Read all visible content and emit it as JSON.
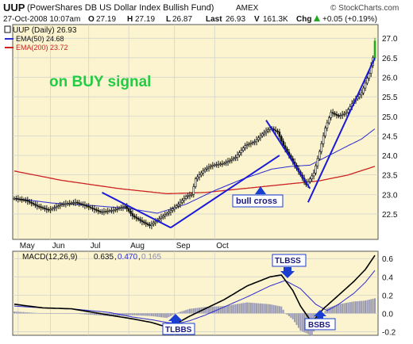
{
  "colors": {
    "panel_bg": "#fbf4cf",
    "grid": "#cfcfcf",
    "price": "#111111",
    "ema50": "#2b2bd0",
    "ema200": "#cc2222",
    "trendline": "#1a1ad8",
    "annotation_text_green": "#22cc44",
    "callout_fill": "#1a3fd0",
    "callout_box_border": "#1a3fd0",
    "macd_line": "#000000",
    "signal_line": "#2b2bd0",
    "histogram": "#9a9ab4",
    "last_bar": "#22aa22"
  },
  "header": {
    "symbol": "UUP",
    "fund_name": "(PowerShares DB US Dollar Index Bullish Fund)",
    "exchange": "AMEX",
    "watermark": "© StockCharts.com",
    "date_time": "27-Oct-2008 10:07am",
    "open_label": "O",
    "open_value": "27.19",
    "high_label": "H",
    "high_value": "27.19",
    "low_label": "L",
    "low_value": "26.87",
    "last_label": "Last",
    "last_value": "26.93",
    "volume_label": "V",
    "volume_value": "161.3K",
    "change_label": "Chg",
    "change_value": "+0.05 (+0.19%)",
    "change_icon": "up-arrow-icon"
  },
  "price_panel": {
    "legend": [
      {
        "text": "UUP (Daily) 26.93",
        "color": "#111111",
        "icon": "candlestick-icon"
      },
      {
        "text": "EMA(50) 24.68",
        "color": "#2b2bd0",
        "icon": "line-swatch-icon"
      },
      {
        "text": "EMA(200) 23.72",
        "color": "#cc2222",
        "icon": "line-swatch-icon"
      }
    ],
    "signal_text": "on BUY signal",
    "callout_bull_cross": "bull cross"
  },
  "macd_panel": {
    "legend_name": "MACD(12,26,9)",
    "legend_macd": "0.635",
    "legend_signal": "0.470",
    "legend_hist": "0.165",
    "callouts": {
      "tlbbs": "TLBBS",
      "tlbss": "TLBSS",
      "bsbs": "BSBS"
    }
  },
  "chart_data": [
    {
      "type": "candlestick",
      "title": "UUP (PowerShares DB US Dollar Index Bullish Fund) AMEX",
      "x_labels": [
        "May",
        "Jun",
        "Jul",
        "Aug",
        "Sep",
        "Oct"
      ],
      "y_ticks": [
        22.5,
        23.0,
        23.5,
        24.0,
        24.5,
        25.0,
        25.5,
        26.0,
        26.5,
        27.0
      ],
      "ylim": [
        21.85,
        27.35
      ],
      "grid": true,
      "legend_position": "top-left",
      "axis_side": "right",
      "series": [
        {
          "name": "UUP (Daily)",
          "kind": "close",
          "anchors": [
            [
              0,
              22.9
            ],
            [
              6,
              22.85
            ],
            [
              12,
              22.7
            ],
            [
              18,
              22.6
            ],
            [
              25,
              22.75
            ],
            [
              32,
              22.8
            ],
            [
              38,
              22.7
            ],
            [
              45,
              22.55
            ],
            [
              52,
              22.6
            ],
            [
              58,
              22.7
            ],
            [
              62,
              22.45
            ],
            [
              67,
              22.3
            ],
            [
              71,
              22.2
            ],
            [
              75,
              22.35
            ],
            [
              81,
              22.55
            ],
            [
              86,
              22.75
            ],
            [
              90,
              22.95
            ],
            [
              93,
              23.0
            ],
            [
              95,
              23.4
            ],
            [
              100,
              23.65
            ],
            [
              104,
              23.75
            ],
            [
              110,
              23.8
            ],
            [
              116,
              23.95
            ],
            [
              121,
              24.25
            ],
            [
              126,
              24.35
            ],
            [
              130,
              24.55
            ],
            [
              134,
              24.7
            ],
            [
              138,
              24.6
            ],
            [
              141,
              24.25
            ],
            [
              144,
              24.0
            ],
            [
              147,
              23.75
            ],
            [
              150,
              23.5
            ],
            [
              153,
              23.25
            ],
            [
              157,
              23.55
            ],
            [
              160,
              24.1
            ],
            [
              163,
              24.7
            ],
            [
              166,
              25.1
            ],
            [
              170,
              25.0
            ],
            [
              174,
              25.1
            ],
            [
              178,
              25.4
            ],
            [
              182,
              25.6
            ],
            [
              186,
              26.1
            ],
            [
              188,
              26.5
            ],
            [
              189,
              26.93
            ]
          ]
        },
        {
          "name": "EMA(50)",
          "anchors": [
            [
              0,
              22.9
            ],
            [
              20,
              22.78
            ],
            [
              40,
              22.72
            ],
            [
              60,
              22.64
            ],
            [
              75,
              22.52
            ],
            [
              90,
              22.75
            ],
            [
              105,
              23.1
            ],
            [
              120,
              23.4
            ],
            [
              135,
              23.65
            ],
            [
              145,
              23.72
            ],
            [
              155,
              23.75
            ],
            [
              165,
              24.0
            ],
            [
              175,
              24.25
            ],
            [
              182,
              24.42
            ],
            [
              189,
              24.68
            ]
          ]
        },
        {
          "name": "EMA(200)",
          "anchors": [
            [
              0,
              23.6
            ],
            [
              25,
              23.36
            ],
            [
              55,
              23.15
            ],
            [
              80,
              23.02
            ],
            [
              100,
              23.05
            ],
            [
              120,
              23.15
            ],
            [
              140,
              23.25
            ],
            [
              160,
              23.35
            ],
            [
              175,
              23.5
            ],
            [
              189,
              23.72
            ]
          ]
        }
      ],
      "trendlines": [
        [
          [
            46,
            23.05
          ],
          [
            82,
            22.15
          ]
        ],
        [
          [
            82,
            22.15
          ],
          [
            139,
            24.0
          ]
        ],
        [
          [
            132,
            24.9
          ],
          [
            155,
            23.15
          ]
        ],
        [
          [
            154,
            22.8
          ],
          [
            189,
            26.5
          ]
        ]
      ]
    },
    {
      "type": "macd",
      "legend": "MACD(12,26,9) 0.635, 0.470, 0.165",
      "y_ticks": [
        -0.2,
        0.0,
        0.2,
        0.4,
        0.6
      ],
      "ylim": [
        -0.24,
        0.68
      ],
      "grid": true,
      "series": [
        {
          "name": "MACD(12,26,9)",
          "anchors": [
            [
              0,
              0.1
            ],
            [
              15,
              0.06
            ],
            [
              30,
              0.05
            ],
            [
              50,
              -0.02
            ],
            [
              62,
              -0.06
            ],
            [
              72,
              -0.1
            ],
            [
              80,
              -0.15
            ],
            [
              86,
              -0.1
            ],
            [
              92,
              -0.03
            ],
            [
              100,
              0.05
            ],
            [
              110,
              0.15
            ],
            [
              122,
              0.3
            ],
            [
              134,
              0.4
            ],
            [
              140,
              0.42
            ],
            [
              146,
              0.25
            ],
            [
              150,
              0.08
            ],
            [
              156,
              -0.1
            ],
            [
              162,
              0.05
            ],
            [
              170,
              0.2
            ],
            [
              178,
              0.35
            ],
            [
              184,
              0.48
            ],
            [
              189,
              0.635
            ]
          ]
        },
        {
          "name": "signal",
          "anchors": [
            [
              0,
              0.08
            ],
            [
              15,
              0.06
            ],
            [
              30,
              0.05
            ],
            [
              50,
              0.01
            ],
            [
              62,
              -0.04
            ],
            [
              72,
              -0.07
            ],
            [
              80,
              -0.1
            ],
            [
              86,
              -0.11
            ],
            [
              92,
              -0.08
            ],
            [
              100,
              -0.02
            ],
            [
              110,
              0.07
            ],
            [
              122,
              0.18
            ],
            [
              134,
              0.3
            ],
            [
              142,
              0.36
            ],
            [
              150,
              0.27
            ],
            [
              158,
              0.1
            ],
            [
              164,
              0.03
            ],
            [
              170,
              0.1
            ],
            [
              178,
              0.22
            ],
            [
              184,
              0.34
            ],
            [
              189,
              0.47
            ]
          ]
        }
      ]
    }
  ]
}
